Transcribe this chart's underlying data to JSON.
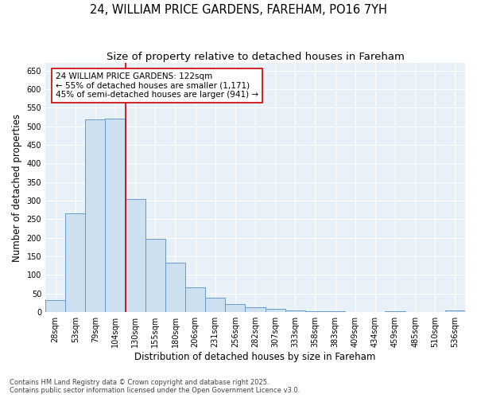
{
  "title1": "24, WILLIAM PRICE GARDENS, FAREHAM, PO16 7YH",
  "title2": "Size of property relative to detached houses in Fareham",
  "xlabel": "Distribution of detached houses by size in Fareham",
  "ylabel": "Number of detached properties",
  "categories": [
    "28sqm",
    "53sqm",
    "79sqm",
    "104sqm",
    "130sqm",
    "155sqm",
    "180sqm",
    "206sqm",
    "231sqm",
    "256sqm",
    "282sqm",
    "307sqm",
    "333sqm",
    "358sqm",
    "383sqm",
    "409sqm",
    "434sqm",
    "459sqm",
    "485sqm",
    "510sqm",
    "536sqm"
  ],
  "values": [
    32,
    265,
    518,
    520,
    305,
    198,
    133,
    67,
    40,
    21,
    14,
    8,
    5,
    3,
    2,
    1,
    0,
    2,
    0,
    0,
    4
  ],
  "bar_color": "#cce0f0",
  "bar_edge_color": "#6699cc",
  "vline_x": 3.5,
  "vline_color": "#cc0000",
  "annotation_text": "24 WILLIAM PRICE GARDENS: 122sqm\n← 55% of detached houses are smaller (1,171)\n45% of semi-detached houses are larger (941) →",
  "annotation_box_color": "#ffffff",
  "annotation_box_edge": "#cc0000",
  "ylim": [
    0,
    670
  ],
  "yticks": [
    0,
    50,
    100,
    150,
    200,
    250,
    300,
    350,
    400,
    450,
    500,
    550,
    600,
    650
  ],
  "footer1": "Contains HM Land Registry data © Crown copyright and database right 2025.",
  "footer2": "Contains public sector information licensed under the Open Government Licence v3.0.",
  "bg_color": "#ffffff",
  "plot_bg_color": "#e8f0f8",
  "grid_color": "#ffffff",
  "title_fontsize": 10.5,
  "subtitle_fontsize": 9.5,
  "tick_fontsize": 7,
  "label_fontsize": 8.5,
  "annotation_fontsize": 7.5,
  "footer_fontsize": 6
}
